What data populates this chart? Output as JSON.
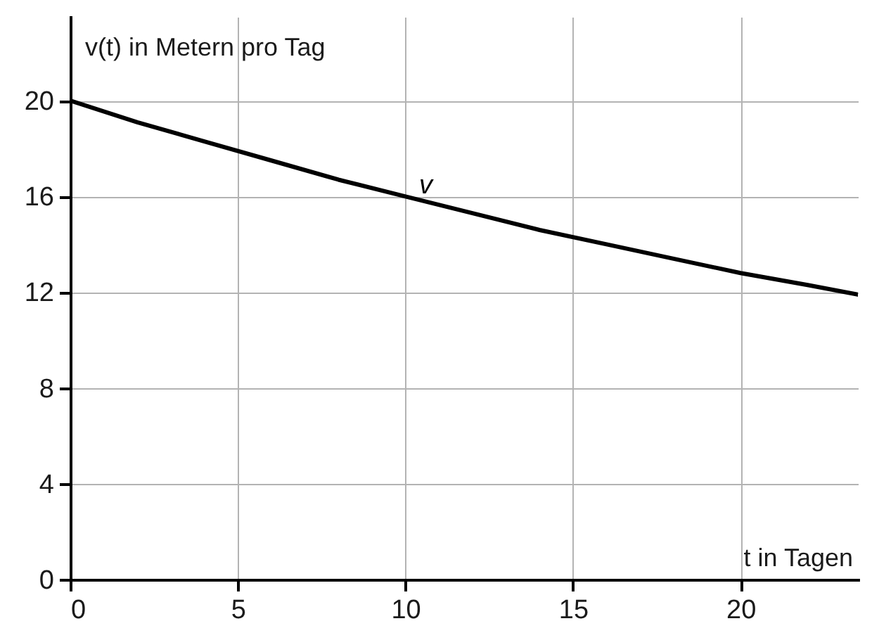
{
  "chart_data": {
    "type": "line",
    "xlabel": "t in Tagen",
    "ylabel": "v(t) in Metern pro Tag",
    "x": [
      0,
      2,
      4,
      6,
      8,
      10,
      12,
      14,
      16,
      18,
      20,
      22,
      23.5
    ],
    "series": [
      {
        "name": "v",
        "color": "#000000",
        "values": [
          20,
          19.1,
          18.3,
          17.5,
          16.7,
          16,
          15.3,
          14.6,
          14,
          13.4,
          12.8,
          12.3,
          11.9
        ]
      }
    ],
    "xlim": [
      0,
      23.5
    ],
    "ylim": [
      0,
      23.5
    ],
    "xticks": [
      0,
      5,
      10,
      15,
      20
    ],
    "yticks": [
      0,
      4,
      8,
      12,
      16,
      20
    ],
    "grid": true,
    "marker": "none",
    "line_style": "solid"
  }
}
